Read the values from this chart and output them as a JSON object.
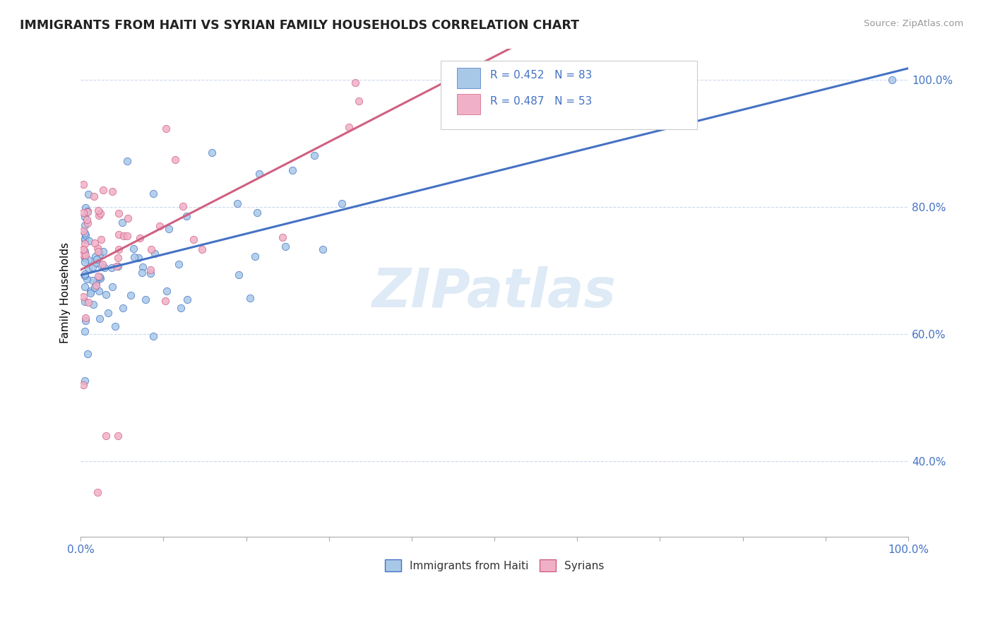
{
  "title": "IMMIGRANTS FROM HAITI VS SYRIAN FAMILY HOUSEHOLDS CORRELATION CHART",
  "source": "Source: ZipAtlas.com",
  "ylabel": "Family Households",
  "legend_haiti": "Immigrants from Haiti",
  "legend_syrians": "Syrians",
  "r_haiti": 0.452,
  "n_haiti": 83,
  "r_syrians": 0.487,
  "n_syrians": 53,
  "color_haiti": "#a8c8e8",
  "color_syrians": "#f0b0c8",
  "color_line_haiti": "#4472c4",
  "color_line_syrians": "#d06080",
  "color_text_blue": "#4472c4",
  "color_tick": "#4472c4",
  "watermark_color": "#c8ddf0",
  "ylim_min": 0.28,
  "ylim_max": 1.05,
  "xlim_min": 0.0,
  "xlim_max": 1.0,
  "yticks": [
    0.4,
    0.6,
    0.8,
    1.0
  ],
  "ytick_labels": [
    "40.0%",
    "60.0%",
    "80.0%",
    "100.0%"
  ],
  "line_haiti_x0": 0.0,
  "line_haiti_y0": 0.695,
  "line_haiti_x1": 1.0,
  "line_haiti_y1": 1.0,
  "line_syrian_x0": 0.0,
  "line_syrian_y0": 0.72,
  "line_syrian_x1": 0.45,
  "line_syrian_y1": 0.93
}
